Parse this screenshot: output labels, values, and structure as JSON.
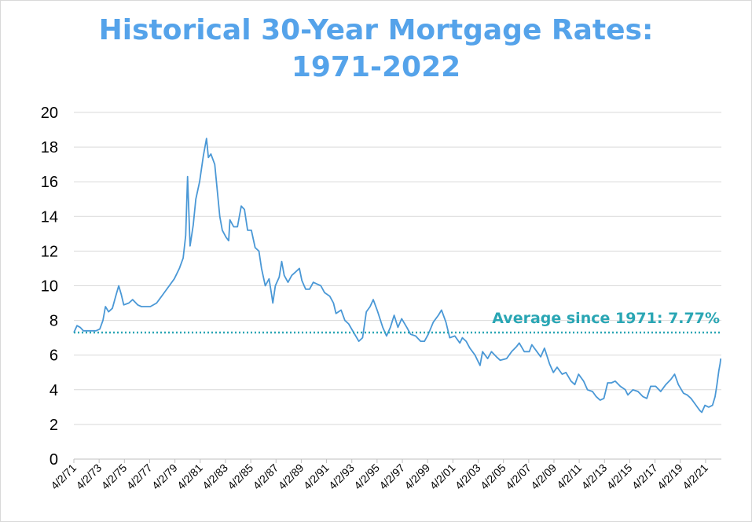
{
  "chart_data": {
    "type": "line",
    "title_lines": [
      "Historical 30-Year Mortgage Rates:",
      "1971-2022"
    ],
    "xlabel": "",
    "ylabel": "",
    "ylim": [
      0,
      20
    ],
    "yticks": [
      0,
      2,
      4,
      6,
      8,
      10,
      12,
      14,
      16,
      18,
      20
    ],
    "xlim": [
      1971.25,
      2022.5
    ],
    "x_tick_labels": [
      "4/2/71",
      "4/2/73",
      "4/2/75",
      "4/2/77",
      "4/2/79",
      "4/2/81",
      "4/2/83",
      "4/2/85",
      "4/2/87",
      "4/2/89",
      "4/2/91",
      "4/2/93",
      "4/2/95",
      "4/2/97",
      "4/2/99",
      "4/2/01",
      "4/2/03",
      "4/2/05",
      "4/2/07",
      "4/2/09",
      "4/2/11",
      "4/2/13",
      "4/2/15",
      "4/2/17",
      "4/2/19",
      "4/2/21"
    ],
    "x_tick_years": [
      1971.25,
      1973.25,
      1975.25,
      1977.25,
      1979.25,
      1981.25,
      1983.25,
      1985.25,
      1987.25,
      1989.25,
      1991.25,
      1993.25,
      1995.25,
      1997.25,
      1999.25,
      2001.25,
      2003.25,
      2005.25,
      2007.25,
      2009.25,
      2011.25,
      2013.25,
      2015.25,
      2017.25,
      2019.25,
      2021.25
    ],
    "grid": true,
    "series": [
      {
        "color": "#4a98d6",
        "points": [
          [
            1971.25,
            7.3
          ],
          [
            1971.5,
            7.7
          ],
          [
            1971.75,
            7.6
          ],
          [
            1972.0,
            7.4
          ],
          [
            1972.5,
            7.4
          ],
          [
            1973.0,
            7.4
          ],
          [
            1973.3,
            7.5
          ],
          [
            1973.55,
            8.0
          ],
          [
            1973.75,
            8.8
          ],
          [
            1974.0,
            8.5
          ],
          [
            1974.3,
            8.7
          ],
          [
            1974.6,
            9.5
          ],
          [
            1974.8,
            10.0
          ],
          [
            1975.0,
            9.5
          ],
          [
            1975.2,
            8.9
          ],
          [
            1975.6,
            9.0
          ],
          [
            1975.9,
            9.2
          ],
          [
            1976.3,
            8.9
          ],
          [
            1976.6,
            8.8
          ],
          [
            1976.9,
            8.8
          ],
          [
            1977.3,
            8.8
          ],
          [
            1977.8,
            9.0
          ],
          [
            1978.3,
            9.5
          ],
          [
            1978.8,
            10.0
          ],
          [
            1979.2,
            10.4
          ],
          [
            1979.6,
            11.0
          ],
          [
            1979.9,
            11.6
          ],
          [
            1980.1,
            12.9
          ],
          [
            1980.25,
            16.3
          ],
          [
            1980.45,
            12.3
          ],
          [
            1980.7,
            13.5
          ],
          [
            1980.9,
            15.0
          ],
          [
            1981.2,
            16.0
          ],
          [
            1981.5,
            17.5
          ],
          [
            1981.75,
            18.5
          ],
          [
            1981.9,
            17.4
          ],
          [
            1982.1,
            17.6
          ],
          [
            1982.4,
            17.0
          ],
          [
            1982.6,
            15.5
          ],
          [
            1982.8,
            14.0
          ],
          [
            1983.0,
            13.2
          ],
          [
            1983.3,
            12.8
          ],
          [
            1983.5,
            12.6
          ],
          [
            1983.6,
            13.8
          ],
          [
            1983.9,
            13.4
          ],
          [
            1984.2,
            13.4
          ],
          [
            1984.5,
            14.6
          ],
          [
            1984.75,
            14.4
          ],
          [
            1985.0,
            13.2
          ],
          [
            1985.3,
            13.2
          ],
          [
            1985.6,
            12.2
          ],
          [
            1985.9,
            12.0
          ],
          [
            1986.1,
            11.0
          ],
          [
            1986.4,
            10.0
          ],
          [
            1986.7,
            10.4
          ],
          [
            1986.9,
            9.5
          ],
          [
            1987.0,
            9.0
          ],
          [
            1987.2,
            10.0
          ],
          [
            1987.5,
            10.5
          ],
          [
            1987.7,
            11.4
          ],
          [
            1987.9,
            10.6
          ],
          [
            1988.2,
            10.2
          ],
          [
            1988.5,
            10.6
          ],
          [
            1988.8,
            10.8
          ],
          [
            1989.1,
            11.0
          ],
          [
            1989.3,
            10.3
          ],
          [
            1989.6,
            9.8
          ],
          [
            1989.9,
            9.8
          ],
          [
            1990.2,
            10.2
          ],
          [
            1990.5,
            10.1
          ],
          [
            1990.8,
            10.0
          ],
          [
            1991.1,
            9.6
          ],
          [
            1991.5,
            9.4
          ],
          [
            1991.8,
            9.0
          ],
          [
            1992.0,
            8.4
          ],
          [
            1992.4,
            8.6
          ],
          [
            1992.7,
            8.0
          ],
          [
            1993.0,
            7.8
          ],
          [
            1993.4,
            7.3
          ],
          [
            1993.8,
            6.8
          ],
          [
            1994.1,
            7.0
          ],
          [
            1994.4,
            8.5
          ],
          [
            1994.7,
            8.8
          ],
          [
            1994.95,
            9.2
          ],
          [
            1995.3,
            8.5
          ],
          [
            1995.7,
            7.6
          ],
          [
            1996.0,
            7.1
          ],
          [
            1996.3,
            7.6
          ],
          [
            1996.6,
            8.3
          ],
          [
            1996.9,
            7.6
          ],
          [
            1997.2,
            8.1
          ],
          [
            1997.6,
            7.6
          ],
          [
            1997.9,
            7.2
          ],
          [
            1998.3,
            7.1
          ],
          [
            1998.7,
            6.8
          ],
          [
            1999.0,
            6.8
          ],
          [
            1999.3,
            7.2
          ],
          [
            1999.7,
            7.9
          ],
          [
            2000.1,
            8.3
          ],
          [
            2000.35,
            8.6
          ],
          [
            2000.7,
            7.9
          ],
          [
            2001.0,
            7.0
          ],
          [
            2001.4,
            7.1
          ],
          [
            2001.8,
            6.7
          ],
          [
            2002.0,
            7.0
          ],
          [
            2002.3,
            6.8
          ],
          [
            2002.6,
            6.4
          ],
          [
            2003.0,
            6.0
          ],
          [
            2003.4,
            5.4
          ],
          [
            2003.6,
            6.2
          ],
          [
            2004.0,
            5.8
          ],
          [
            2004.3,
            6.2
          ],
          [
            2004.7,
            5.9
          ],
          [
            2005.0,
            5.7
          ],
          [
            2005.5,
            5.8
          ],
          [
            2005.9,
            6.2
          ],
          [
            2006.3,
            6.5
          ],
          [
            2006.5,
            6.7
          ],
          [
            2006.9,
            6.2
          ],
          [
            2007.3,
            6.2
          ],
          [
            2007.5,
            6.6
          ],
          [
            2007.9,
            6.2
          ],
          [
            2008.2,
            5.9
          ],
          [
            2008.5,
            6.4
          ],
          [
            2008.9,
            5.5
          ],
          [
            2009.2,
            5.0
          ],
          [
            2009.5,
            5.3
          ],
          [
            2009.9,
            4.9
          ],
          [
            2010.2,
            5.0
          ],
          [
            2010.6,
            4.5
          ],
          [
            2010.9,
            4.3
          ],
          [
            2011.2,
            4.9
          ],
          [
            2011.6,
            4.5
          ],
          [
            2011.9,
            4.0
          ],
          [
            2012.3,
            3.9
          ],
          [
            2012.6,
            3.6
          ],
          [
            2012.9,
            3.4
          ],
          [
            2013.2,
            3.5
          ],
          [
            2013.5,
            4.4
          ],
          [
            2013.8,
            4.4
          ],
          [
            2014.1,
            4.5
          ],
          [
            2014.5,
            4.2
          ],
          [
            2014.9,
            4.0
          ],
          [
            2015.1,
            3.7
          ],
          [
            2015.5,
            4.0
          ],
          [
            2015.9,
            3.9
          ],
          [
            2016.3,
            3.6
          ],
          [
            2016.6,
            3.5
          ],
          [
            2016.9,
            4.2
          ],
          [
            2017.3,
            4.2
          ],
          [
            2017.7,
            3.9
          ],
          [
            2018.1,
            4.3
          ],
          [
            2018.5,
            4.6
          ],
          [
            2018.8,
            4.9
          ],
          [
            2019.1,
            4.3
          ],
          [
            2019.5,
            3.8
          ],
          [
            2019.8,
            3.7
          ],
          [
            2020.1,
            3.5
          ],
          [
            2020.4,
            3.2
          ],
          [
            2020.8,
            2.8
          ],
          [
            2020.95,
            2.7
          ],
          [
            2021.2,
            3.1
          ],
          [
            2021.5,
            3.0
          ],
          [
            2021.8,
            3.1
          ],
          [
            2022.0,
            3.6
          ],
          [
            2022.15,
            4.3
          ],
          [
            2022.3,
            5.1
          ],
          [
            2022.4,
            5.5
          ],
          [
            2022.45,
            5.8
          ]
        ]
      }
    ],
    "reference_line": {
      "value": 7.3,
      "label": "Average since 1971: 7.77%",
      "color": "#2aa6b4",
      "style": "dotted"
    }
  }
}
